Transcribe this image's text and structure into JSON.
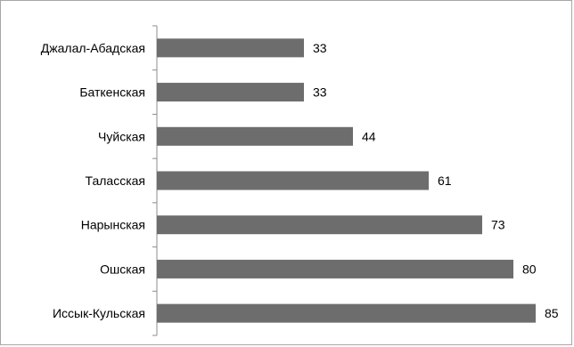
{
  "chart_data": {
    "type": "bar",
    "orientation": "horizontal",
    "title": "",
    "xlabel": "",
    "ylabel": "",
    "categories": [
      "Джалал-Абадская",
      "Баткенская",
      "Чуйская",
      "Таласская",
      "Нарынская",
      "Ошская",
      "Иссык-Кульская"
    ],
    "values": [
      33,
      33,
      44,
      61,
      73,
      80,
      85
    ],
    "xlim": [
      0,
      90
    ],
    "grid": false,
    "legend": "none",
    "data_labels": true,
    "bar_color": "#6d6d6d",
    "axis_color": "#8c8c8c"
  }
}
